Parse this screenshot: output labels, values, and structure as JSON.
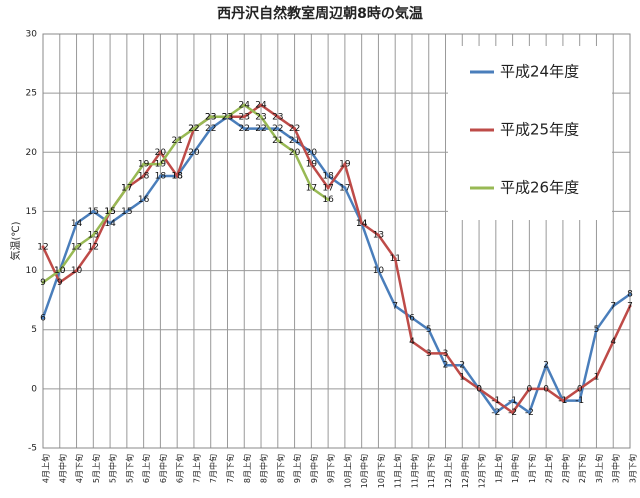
{
  "chart_data": {
    "type": "line",
    "title": "西丹沢自然教室周辺朝8時の気温",
    "y_label": "気温(℃)",
    "categories": [
      "4月上旬",
      "4月中旬",
      "4月下旬",
      "5月上旬",
      "5月中旬",
      "5月下旬",
      "6月上旬",
      "6月中旬",
      "6月下旬",
      "7月上旬",
      "7月中旬",
      "7月下旬",
      "8月上旬",
      "8月中旬",
      "8月下旬",
      "9月上旬",
      "9月中旬",
      "9月下旬",
      "10月上旬",
      "10月中旬",
      "10月下旬",
      "11月上旬",
      "11月中旬",
      "11月下旬",
      "12月上旬",
      "12月中旬",
      "12月下旬",
      "1月上旬",
      "1月中旬",
      "1月下旬",
      "2月上旬",
      "2月中旬",
      "2月下旬",
      "3月上旬",
      "3月中旬",
      "3月下旬"
    ],
    "series": [
      {
        "name": "平成24年度",
        "color": "#4a7ebb",
        "values": [
          6,
          10,
          14,
          15,
          14,
          15,
          16,
          18,
          18,
          20,
          22,
          23,
          22,
          22,
          22,
          21,
          20,
          18,
          17,
          14,
          10,
          7,
          6,
          5,
          2,
          2,
          0,
          -2,
          -1,
          -2,
          2,
          -1,
          -1,
          5,
          7,
          8
        ]
      },
      {
        "name": "平成25年度",
        "color": "#be4b48",
        "values": [
          12,
          9,
          10,
          12,
          15,
          17,
          18,
          20,
          18,
          22,
          23,
          23,
          23,
          24,
          23,
          22,
          19,
          17,
          19,
          14,
          13,
          11,
          4,
          3,
          3,
          1,
          0,
          -1,
          -2,
          0,
          0,
          -1,
          0,
          1,
          4,
          7
        ]
      },
      {
        "name": "平成26年度",
        "color": "#98b954",
        "values": [
          9,
          10,
          12,
          13,
          15,
          17,
          19,
          19,
          21,
          22,
          23,
          23,
          24,
          23,
          21,
          20,
          17,
          16,
          null,
          null,
          null,
          null,
          null,
          null,
          null,
          null,
          null,
          null,
          null,
          null,
          null,
          null,
          null,
          null,
          null,
          null
        ]
      }
    ],
    "ylim": [
      -5,
      30
    ],
    "yticks": [
      -5,
      0,
      5,
      10,
      15,
      20,
      25,
      30
    ],
    "grid": true
  }
}
